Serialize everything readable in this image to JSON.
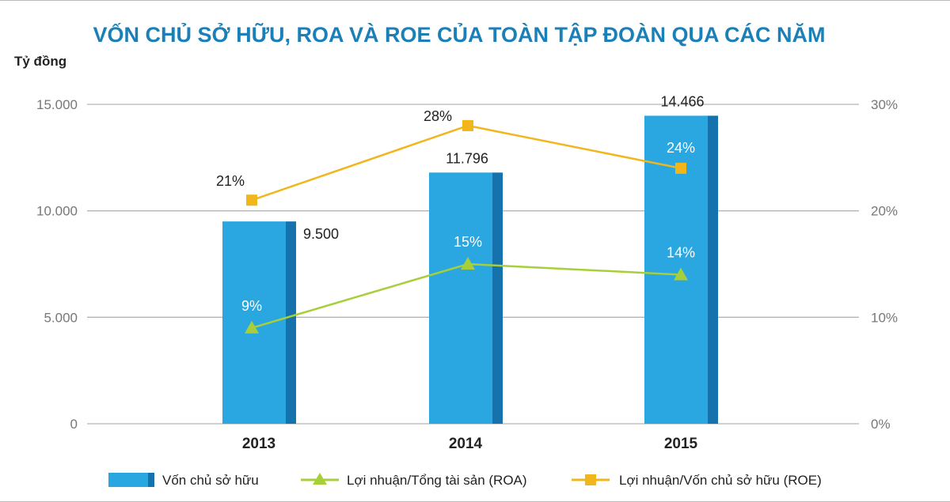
{
  "chart_data": {
    "type": "bar",
    "title": "VỐN CHỦ SỞ HỮU, ROA VÀ ROE CỦA TOÀN TẬP ĐOÀN QUA CÁC NĂM",
    "ylabel": "Tỷ đồng",
    "categories": [
      "2013",
      "2014",
      "2015"
    ],
    "ylim": [
      0,
      15000
    ],
    "yticks": [
      "0",
      "5.000",
      "10.000",
      "15.000"
    ],
    "y2lim": [
      0,
      30
    ],
    "y2ticks": [
      "0%",
      "10%",
      "20%",
      "30%"
    ],
    "grid": true,
    "legend_position": "bottom",
    "series": [
      {
        "name": "Vốn chủ sở hữu",
        "type": "bar",
        "axis": "left",
        "values": [
          9500,
          11796,
          14466
        ],
        "labels": [
          "9.500",
          "11.796",
          "14.466"
        ],
        "color": "#2aa6e0"
      },
      {
        "name": "Lợi nhuận/Tổng tài sản (ROA)",
        "type": "line",
        "axis": "right",
        "marker": "triangle",
        "values": [
          9,
          15,
          14
        ],
        "labels": [
          "9%",
          "15%",
          "14%"
        ],
        "color": "#a6cf3a"
      },
      {
        "name": "Lợi nhuận/Vốn chủ sở hữu (ROE)",
        "type": "line",
        "axis": "right",
        "marker": "square",
        "values": [
          21,
          28,
          24
        ],
        "labels": [
          "21%",
          "28%",
          "24%"
        ],
        "color": "#f2b61d"
      }
    ]
  }
}
